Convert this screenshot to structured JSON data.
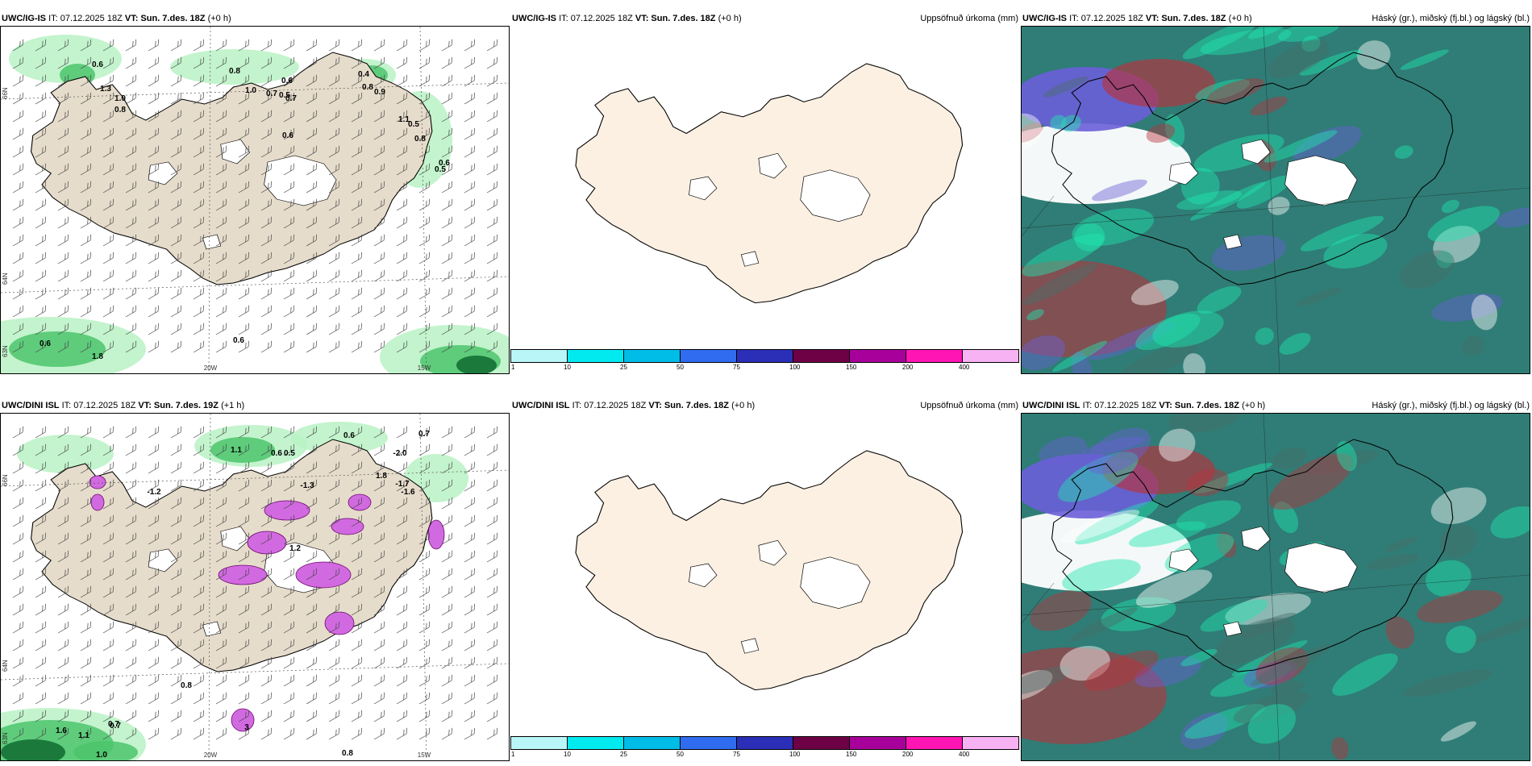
{
  "rows": [
    {
      "model": "UWC/IG-IS",
      "left": {
        "model": "UWC/IG-IS",
        "it": "IT: 07.12.2025 18Z",
        "vt_label": "VT:",
        "vt": "Sun. 7.des. 18Z",
        "lead": "(+0 h)"
      },
      "mid": {
        "model": "UWC/IG-IS",
        "it": "IT: 07.12.2025 18Z",
        "vt_label": "VT:",
        "vt": "Sun. 7.des. 18Z",
        "lead": "(+0 h)",
        "title": "Uppsöfnuð úrkoma (mm)"
      },
      "right": {
        "model": "UWC/IG-IS",
        "it": "IT: 07.12.2025 18Z",
        "vt_label": "VT:",
        "vt": "Sun. 7.des. 18Z",
        "lead": "(+0 h)",
        "title": "Háský (gr.), miðský (fj.bl.) og lágský (bl.)"
      },
      "lon_labels": [
        "20W",
        "15W"
      ],
      "lat_labels": [
        "66N",
        "64N",
        "63N"
      ],
      "precip_labels": [
        "0.6",
        "0.8",
        "1.3",
        "1.0",
        "0.8",
        "1.0",
        "0.6",
        "0.5",
        "0.7",
        "0.6",
        "0.4",
        "0.8",
        "0.9",
        "1.1",
        "0.5",
        "0.8",
        "0.6",
        "0.5",
        "0.7",
        "0.6",
        "0.6",
        "1.8"
      ]
    },
    {
      "model": "UWC/DINI ISL",
      "left": {
        "model": "UWC/DINI ISL",
        "it": "IT: 07.12.2025 18Z",
        "vt_label": "VT:",
        "vt": "Sun. 7.des. 19Z",
        "lead": "(+1 h)"
      },
      "mid": {
        "model": "UWC/DINI ISL",
        "it": "IT: 07.12.2025 18Z",
        "vt_label": "VT:",
        "vt": "Sun. 7.des. 18Z",
        "lead": "(+0 h)",
        "title": "Uppsöfnuð úrkoma (mm)"
      },
      "right": {
        "model": "UWC/DINI ISL",
        "it": "IT: 07.12.2025 18Z",
        "vt_label": "VT:",
        "vt": "Sun. 7.des. 18Z",
        "lead": "(+0 h)",
        "title": "Háský (gr.), miðský (fj.bl.) og lágský (bl.)"
      },
      "lon_labels": [
        "20W",
        "15W"
      ],
      "lat_labels": [
        "66N",
        "64N",
        "63N"
      ],
      "precip_labels": [
        "0.6",
        "0.7",
        "1.1",
        "0.6",
        "0.5",
        "-2.0",
        "1.8",
        "-1.2",
        "-1.3",
        "-1.7",
        "-1.6",
        "1.2",
        "0.8",
        "1.6",
        "0.7",
        "1.1",
        "1.0",
        "0.7",
        "3",
        "0.8"
      ]
    }
  ],
  "colorbar": {
    "ticks": [
      "1",
      "10",
      "25",
      "50",
      "75",
      "100",
      "150",
      "200",
      "400"
    ],
    "colors": [
      "#b9f6f8",
      "#00eaf0",
      "#00bde8",
      "#2f6cf0",
      "#2b2fb8",
      "#6e0046",
      "#a8009a",
      "#ff14b4",
      "#f7b2f4"
    ]
  },
  "colors": {
    "land": "#e6dccb",
    "land_mid": "#fcf0e2",
    "precip_light": "#b8f2c4",
    "precip_mid": "#4cc46c",
    "precip_dark": "#0e6a30",
    "snow_magenta": "#d16ae0",
    "cloud_base": "#2f7d76",
    "cloud_high": "#6a5fd8",
    "cloud_mid": "#1ee6b0",
    "cloud_low": "#b8323c"
  }
}
